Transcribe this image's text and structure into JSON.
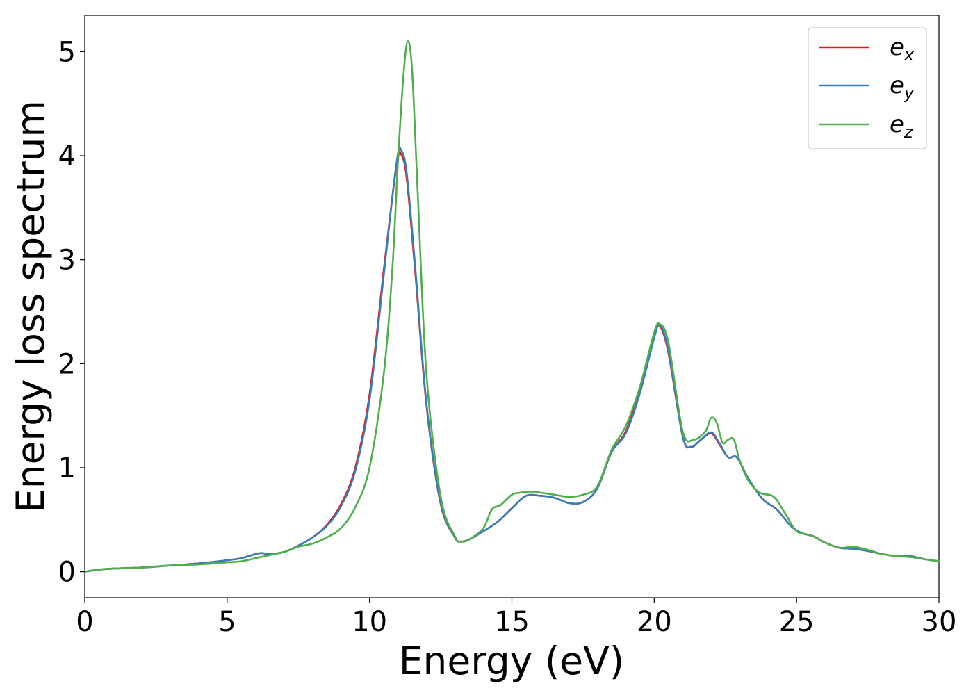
{
  "chart_data": {
    "type": "line",
    "title": "",
    "xlabel": "Energy (eV)",
    "ylabel": "Energy loss spectrum",
    "xlim": [
      0,
      30
    ],
    "ylim": [
      -0.25,
      5.35
    ],
    "xticks": [
      0,
      5,
      10,
      15,
      20,
      25,
      30
    ],
    "yticks": [
      0,
      1,
      2,
      3,
      4,
      5
    ],
    "grid": false,
    "legend_position": "top-right",
    "series": [
      {
        "name": "e_x",
        "label_main": "e",
        "label_sub": "x",
        "color": "#e41a1c",
        "x": [
          0,
          0.5,
          1,
          2,
          3,
          4,
          5,
          5.5,
          6,
          6.2,
          6.5,
          7,
          7.5,
          8,
          8.5,
          9,
          9.5,
          10,
          10.5,
          10.8,
          11.0,
          11.1,
          11.3,
          11.6,
          12.0,
          12.5,
          13.0,
          13.2,
          13.5,
          14.0,
          14.5,
          15.0,
          15.5,
          16.0,
          16.5,
          17.0,
          17.5,
          18.0,
          18.5,
          19.0,
          19.5,
          20.0,
          20.2,
          20.5,
          21.0,
          21.3,
          21.6,
          22.0,
          22.3,
          22.6,
          22.9,
          23.3,
          23.8,
          24.3,
          24.8,
          25.2,
          25.6,
          26.0,
          26.5,
          27.0,
          27.5,
          28.0,
          28.5,
          29.0,
          29.5,
          30.0
        ],
        "y": [
          0.0,
          0.02,
          0.03,
          0.04,
          0.06,
          0.08,
          0.11,
          0.13,
          0.17,
          0.18,
          0.17,
          0.19,
          0.25,
          0.33,
          0.45,
          0.65,
          1.0,
          1.7,
          2.9,
          3.6,
          3.98,
          4.02,
          3.8,
          2.9,
          1.6,
          0.65,
          0.33,
          0.29,
          0.31,
          0.39,
          0.48,
          0.61,
          0.73,
          0.73,
          0.71,
          0.66,
          0.67,
          0.8,
          1.15,
          1.35,
          1.75,
          2.28,
          2.36,
          2.1,
          1.3,
          1.2,
          1.26,
          1.33,
          1.22,
          1.1,
          1.1,
          0.9,
          0.7,
          0.6,
          0.44,
          0.37,
          0.34,
          0.28,
          0.23,
          0.22,
          0.2,
          0.17,
          0.15,
          0.15,
          0.12,
          0.1
        ]
      },
      {
        "name": "e_y",
        "label_main": "e",
        "label_sub": "y",
        "color": "#377eb8",
        "x": [
          0,
          0.5,
          1,
          2,
          3,
          4,
          5,
          5.5,
          6,
          6.2,
          6.5,
          7,
          7.5,
          8,
          8.5,
          9,
          9.5,
          10,
          10.5,
          10.8,
          11.0,
          11.1,
          11.3,
          11.6,
          12.0,
          12.5,
          13.0,
          13.2,
          13.5,
          14.0,
          14.5,
          15.0,
          15.5,
          16.0,
          16.5,
          17.0,
          17.5,
          18.0,
          18.5,
          19.0,
          19.5,
          20.0,
          20.2,
          20.5,
          21.0,
          21.3,
          21.6,
          22.0,
          22.3,
          22.6,
          22.9,
          23.3,
          23.8,
          24.3,
          24.8,
          25.2,
          25.6,
          26.0,
          26.5,
          27.0,
          27.5,
          28.0,
          28.5,
          29.0,
          29.5,
          30.0
        ],
        "y": [
          0.0,
          0.02,
          0.03,
          0.04,
          0.06,
          0.08,
          0.11,
          0.13,
          0.17,
          0.18,
          0.17,
          0.19,
          0.25,
          0.33,
          0.44,
          0.63,
          0.97,
          1.65,
          2.85,
          3.6,
          4.02,
          4.06,
          3.85,
          2.95,
          1.62,
          0.66,
          0.33,
          0.29,
          0.31,
          0.39,
          0.48,
          0.61,
          0.73,
          0.73,
          0.71,
          0.66,
          0.67,
          0.8,
          1.15,
          1.33,
          1.72,
          2.25,
          2.37,
          2.12,
          1.3,
          1.2,
          1.26,
          1.34,
          1.23,
          1.1,
          1.1,
          0.9,
          0.7,
          0.6,
          0.44,
          0.37,
          0.34,
          0.28,
          0.23,
          0.22,
          0.2,
          0.17,
          0.15,
          0.15,
          0.12,
          0.1
        ]
      },
      {
        "name": "e_z",
        "label_main": "e",
        "label_sub": "z",
        "color": "#4daf4a",
        "x": [
          0,
          0.5,
          1,
          2,
          3,
          4,
          5,
          5.5,
          6,
          6.5,
          7,
          7.5,
          8,
          8.5,
          9,
          9.5,
          10,
          10.5,
          10.8,
          11.0,
          11.2,
          11.35,
          11.5,
          11.7,
          12.0,
          12.5,
          13.0,
          13.2,
          13.5,
          14.0,
          14.3,
          14.6,
          15.0,
          15.3,
          15.7,
          16.0,
          16.5,
          17.0,
          17.5,
          18.0,
          18.5,
          19.0,
          19.5,
          20.0,
          20.2,
          20.5,
          21.0,
          21.4,
          21.8,
          22.0,
          22.2,
          22.4,
          22.6,
          22.8,
          23.0,
          23.3,
          23.7,
          24.2,
          24.6,
          25.0,
          25.5,
          26.0,
          26.5,
          27.0,
          27.5,
          28.0,
          28.5,
          29.0,
          29.5,
          30.0
        ],
        "y": [
          0.0,
          0.02,
          0.03,
          0.04,
          0.06,
          0.07,
          0.09,
          0.1,
          0.13,
          0.16,
          0.19,
          0.24,
          0.27,
          0.33,
          0.42,
          0.62,
          1.0,
          1.9,
          2.9,
          3.95,
          4.8,
          5.1,
          4.8,
          3.6,
          1.9,
          0.72,
          0.34,
          0.29,
          0.31,
          0.42,
          0.6,
          0.64,
          0.74,
          0.76,
          0.77,
          0.76,
          0.74,
          0.72,
          0.74,
          0.82,
          1.17,
          1.4,
          1.78,
          2.3,
          2.38,
          2.2,
          1.35,
          1.27,
          1.35,
          1.48,
          1.43,
          1.24,
          1.27,
          1.27,
          1.07,
          0.88,
          0.76,
          0.72,
          0.56,
          0.39,
          0.35,
          0.28,
          0.23,
          0.24,
          0.21,
          0.17,
          0.15,
          0.14,
          0.12,
          0.1
        ]
      }
    ]
  }
}
